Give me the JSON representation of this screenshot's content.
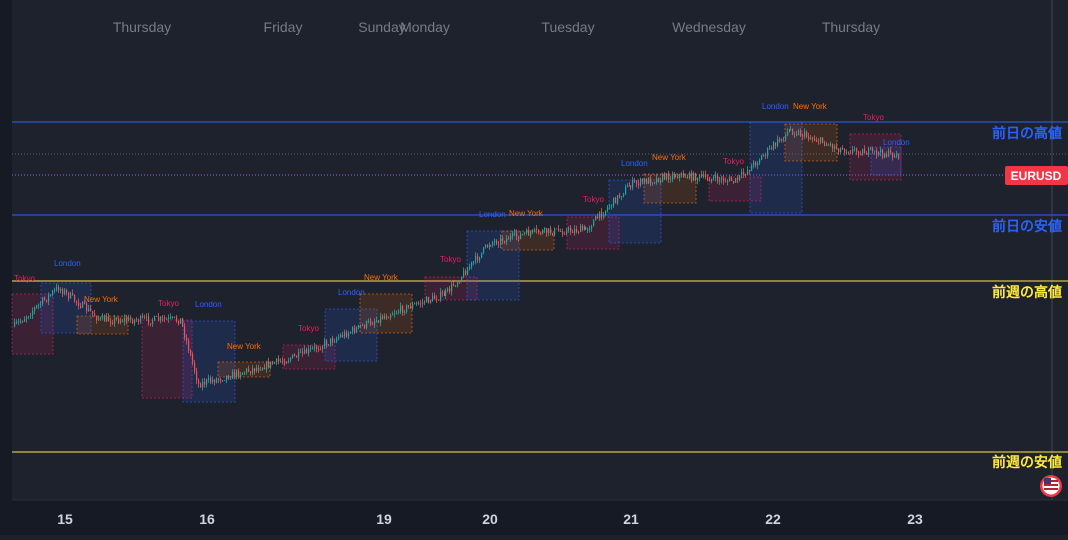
{
  "colors": {
    "background": "#1e222d",
    "axis_background": "#161a25",
    "candle_up": "#26a69a",
    "candle_down": "#ef5350",
    "prev_day_line": "#2962ff",
    "prev_week_line": "#ffeb3b",
    "price_line": "#a155ff",
    "ticker_badge": "#f23645",
    "session_tokyo": "#e91e63",
    "session_london": "#2962ff",
    "session_newyork": "#ff6d00",
    "top_label": "#787b86",
    "axis_label": "#d1d4dc"
  },
  "top_day_labels": [
    "Thursday",
    "Friday",
    "Sunday",
    "Monday",
    "Tuesday",
    "Wednesday",
    "Thursday"
  ],
  "ticker": "EURUSD",
  "levels": {
    "prev_day_high": "前日の高値",
    "prev_day_low": "前日の安値",
    "prev_week_high": "前週の高値",
    "prev_week_low": "前週の安値"
  },
  "chart_data": {
    "type": "line",
    "title": "",
    "x_tick_labels": [
      "15",
      "16",
      "19",
      "20",
      "21",
      "22",
      "23"
    ],
    "series_kind": "candlestick",
    "price_path_approx": [
      {
        "date": "15",
        "session": "Tokyo open",
        "rel": 0.76
      },
      {
        "date": "15",
        "session": "London peak",
        "rel": 0.88
      },
      {
        "date": "15",
        "session": "New York",
        "rel": 0.78
      },
      {
        "date": "16",
        "session": "Tokyo",
        "rel": 0.78
      },
      {
        "date": "16",
        "session": "London low",
        "rel": 0.58
      },
      {
        "date": "16",
        "session": "New York",
        "rel": 0.62
      },
      {
        "date": "19",
        "session": "Tokyo",
        "rel": 0.67
      },
      {
        "date": "19",
        "session": "London",
        "rel": 0.73
      },
      {
        "date": "19",
        "session": "New York",
        "rel": 0.8
      },
      {
        "date": "20",
        "session": "Tokyo",
        "rel": 0.86
      },
      {
        "date": "20",
        "session": "London",
        "rel": 1.02
      },
      {
        "date": "20",
        "session": "New York",
        "rel": 1.05
      },
      {
        "date": "21",
        "session": "Tokyo",
        "rel": 1.06
      },
      {
        "date": "21",
        "session": "London",
        "rel": 1.2
      },
      {
        "date": "21",
        "session": "New York",
        "rel": 1.23
      },
      {
        "date": "22",
        "session": "Tokyo",
        "rel": 1.21
      },
      {
        "date": "22",
        "session": "London",
        "rel": 1.37
      },
      {
        "date": "22",
        "session": "New York",
        "rel": 1.31
      },
      {
        "date": "23",
        "session": "Tokyo",
        "rel": 1.29
      }
    ],
    "sessions": [
      {
        "name": "Tokyo",
        "day": "15"
      },
      {
        "name": "London",
        "day": "15"
      },
      {
        "name": "New York",
        "day": "15"
      },
      {
        "name": "Tokyo",
        "day": "16"
      },
      {
        "name": "London",
        "day": "16"
      },
      {
        "name": "New York",
        "day": "16"
      },
      {
        "name": "Tokyo",
        "day": "19"
      },
      {
        "name": "London",
        "day": "19"
      },
      {
        "name": "New York",
        "day": "19"
      },
      {
        "name": "Tokyo",
        "day": "20"
      },
      {
        "name": "London",
        "day": "20"
      },
      {
        "name": "New York",
        "day": "20"
      },
      {
        "name": "Tokyo",
        "day": "21"
      },
      {
        "name": "London",
        "day": "21"
      },
      {
        "name": "New York",
        "day": "21"
      },
      {
        "name": "Tokyo",
        "day": "22"
      },
      {
        "name": "London",
        "day": "22"
      },
      {
        "name": "New York",
        "day": "22"
      },
      {
        "name": "Tokyo",
        "day": "23"
      },
      {
        "name": "London",
        "day": "23"
      }
    ],
    "grid": false
  }
}
